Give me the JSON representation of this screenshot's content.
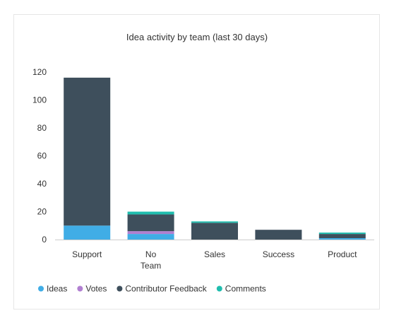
{
  "chart_data": {
    "type": "bar",
    "stacked": true,
    "title": "Idea activity by team (last 30 days)",
    "xlabel": "",
    "ylabel": "",
    "categories": [
      [
        "Support"
      ],
      [
        "No",
        "Team"
      ],
      [
        "Sales"
      ],
      [
        "Success"
      ],
      [
        "Product"
      ]
    ],
    "series": [
      {
        "name": "Ideas",
        "color": "#40ade6",
        "values": [
          10,
          4,
          0,
          0,
          1
        ]
      },
      {
        "name": "Votes",
        "color": "#b17fd1",
        "values": [
          0,
          2,
          0,
          0,
          0
        ]
      },
      {
        "name": "Contributor Feedback",
        "color": "#3e4f5c",
        "values": [
          106,
          12,
          12,
          7,
          3
        ]
      },
      {
        "name": "Comments",
        "color": "#1fbdae",
        "values": [
          0,
          2,
          1,
          0,
          1
        ]
      }
    ],
    "y_ticks": [
      0,
      20,
      40,
      60,
      80,
      100,
      120
    ],
    "ylim": [
      0,
      120
    ],
    "grid": false,
    "legend_position": "bottom-left"
  }
}
